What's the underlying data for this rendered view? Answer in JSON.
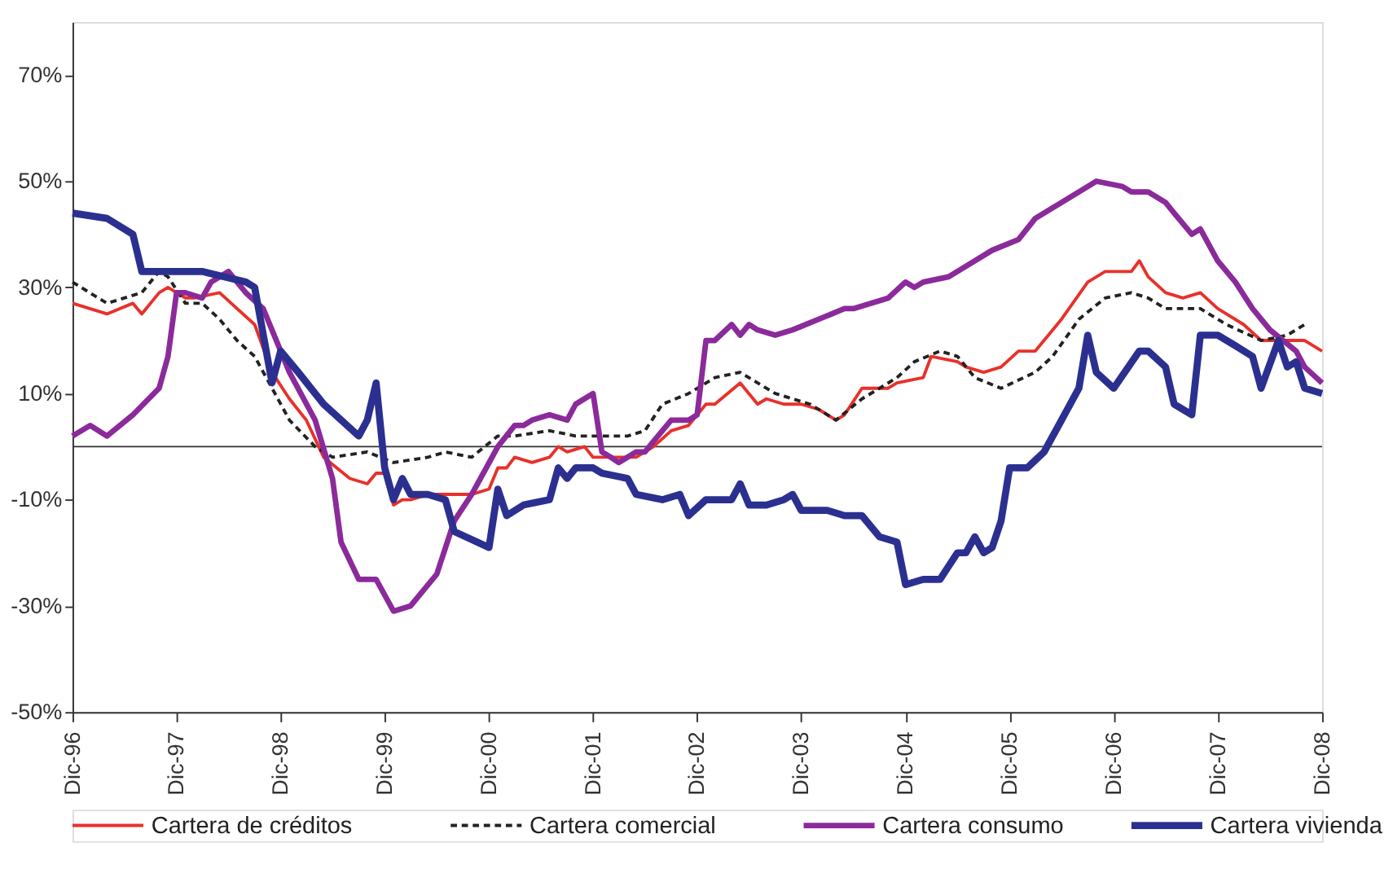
{
  "chart_data": {
    "type": "line",
    "xlim": [
      "1996-12",
      "2008-12"
    ],
    "xticks": [
      {
        "value": "1996-12",
        "label": "Dic-96"
      },
      {
        "value": "1997-12",
        "label": "Dic-97"
      },
      {
        "value": "1998-12",
        "label": "Dic-98"
      },
      {
        "value": "1999-12",
        "label": "Dic-99"
      },
      {
        "value": "2000-12",
        "label": "Dic-00"
      },
      {
        "value": "2001-12",
        "label": "Dic-01"
      },
      {
        "value": "2002-12",
        "label": "Dic-02"
      },
      {
        "value": "2003-12",
        "label": "Dic-03"
      },
      {
        "value": "2004-12",
        "label": "Dic-04"
      },
      {
        "value": "2005-12",
        "label": "Dic-05"
      },
      {
        "value": "2006-12",
        "label": "Dic-06"
      },
      {
        "value": "2007-12",
        "label": "Dic-07"
      },
      {
        "value": "2008-12",
        "label": "Dic-08"
      }
    ],
    "ylim": [
      -50,
      80
    ],
    "yticks": [
      {
        "value": -50,
        "label": "-50%"
      },
      {
        "value": -30,
        "label": "-30%"
      },
      {
        "value": -10,
        "label": "-10%"
      },
      {
        "value": 10,
        "label": "10%"
      },
      {
        "value": 30,
        "label": "30%"
      },
      {
        "value": 50,
        "label": "50%"
      },
      {
        "value": 70,
        "label": "70%"
      }
    ],
    "grid": false,
    "legend": "bottom",
    "marker": "none",
    "ref_lines": [
      {
        "axis": "y",
        "value": 0,
        "color": "#333333"
      }
    ],
    "series": [
      {
        "name": "Cartera de créditos",
        "color": "#e8312a",
        "line_style": "solid",
        "x": [
          "1996-12",
          "1997-04",
          "1997-07",
          "1997-08",
          "1997-10",
          "1997-11",
          "1998-01",
          "1998-02",
          "1998-05",
          "1998-07",
          "1998-09",
          "1998-11",
          "1999-01",
          "1999-03",
          "1999-05",
          "1999-08",
          "1999-10",
          "1999-11",
          "1999-12",
          "2000-01",
          "2000-02",
          "2000-03",
          "2000-05",
          "2000-07",
          "2000-08",
          "2000-10",
          "2000-12",
          "2001-01",
          "2001-02",
          "2001-03",
          "2001-05",
          "2001-07",
          "2001-08",
          "2001-09",
          "2001-11",
          "2001-12",
          "2002-03",
          "2002-05",
          "2002-07",
          "2002-09",
          "2002-11",
          "2003-01",
          "2003-02",
          "2003-05",
          "2003-07",
          "2003-08",
          "2003-10",
          "2003-12",
          "2004-02",
          "2004-04",
          "2004-05",
          "2004-07",
          "2004-08",
          "2004-10",
          "2004-11",
          "2005-02",
          "2005-03",
          "2005-06",
          "2005-07",
          "2005-09",
          "2005-11",
          "2006-01",
          "2006-03",
          "2006-06",
          "2006-09",
          "2006-11",
          "2007-02",
          "2007-03",
          "2007-04",
          "2007-06",
          "2007-08",
          "2007-10",
          "2007-12",
          "2008-03",
          "2008-05",
          "2008-08",
          "2008-10",
          "2008-12"
        ],
        "values": [
          27,
          25,
          27,
          25,
          29,
          30,
          28,
          28,
          29,
          26,
          23,
          14,
          9,
          5,
          -2,
          -6,
          -7,
          -5,
          -5,
          -11,
          -10,
          -10,
          -9,
          -9,
          -9,
          -9,
          -8,
          -4,
          -4,
          -2,
          -3,
          -2,
          0,
          -1,
          0,
          -2,
          -2,
          -2,
          0,
          3,
          4,
          8,
          8,
          12,
          8,
          9,
          8,
          8,
          7,
          5,
          6,
          11,
          11,
          11,
          12,
          13,
          17,
          16,
          15,
          14,
          15,
          18,
          18,
          24,
          31,
          33,
          33,
          35,
          32,
          29,
          28,
          29,
          26,
          23,
          20,
          20,
          20,
          18
        ]
      },
      {
        "name": "Cartera comercial",
        "color": "#222222",
        "line_style": "dashed",
        "x": [
          "1996-12",
          "1997-04",
          "1997-08",
          "1997-10",
          "1997-11",
          "1998-01",
          "1998-03",
          "1998-05",
          "1998-07",
          "1998-09",
          "1998-11",
          "1999-01",
          "1999-04",
          "1999-06",
          "1999-10",
          "2000-01",
          "2000-05",
          "2000-07",
          "2000-10",
          "2001-01",
          "2001-03",
          "2001-07",
          "2001-10",
          "2001-12",
          "2002-04",
          "2002-06",
          "2002-08",
          "2002-11",
          "2003-02",
          "2003-05",
          "2003-07",
          "2003-09",
          "2003-11",
          "2004-01",
          "2004-04",
          "2004-07",
          "2004-09",
          "2004-11",
          "2005-01",
          "2005-04",
          "2005-06",
          "2005-08",
          "2005-11",
          "2006-03",
          "2006-05",
          "2006-08",
          "2006-11",
          "2007-02",
          "2007-04",
          "2007-06",
          "2007-10",
          "2008-01",
          "2008-05",
          "2008-08",
          "2008-10"
        ],
        "values": [
          31,
          27,
          29,
          33,
          32,
          27,
          27,
          24,
          20,
          17,
          11,
          5,
          0,
          -2,
          -1,
          -3,
          -2,
          -1,
          -2,
          2,
          2,
          3,
          2,
          2,
          2,
          3,
          8,
          10,
          13,
          14,
          12,
          10,
          9,
          8,
          5,
          9,
          11,
          13,
          16,
          18,
          17,
          13,
          11,
          14,
          17,
          24,
          28,
          29,
          28,
          26,
          26,
          23,
          20,
          21,
          23
        ]
      },
      {
        "name": "Cartera consumo",
        "color": "#8b2a9a",
        "line_style": "solid",
        "x": [
          "1996-12",
          "1997-02",
          "1997-04",
          "1997-07",
          "1997-10",
          "1997-11",
          "1997-12",
          "1998-01",
          "1998-03",
          "1998-04",
          "1998-06",
          "1998-08",
          "1998-10",
          "1999-01",
          "1999-04",
          "1999-06",
          "1999-07",
          "1999-09",
          "1999-11",
          "2000-01",
          "2000-03",
          "2000-06",
          "2000-08",
          "2000-10",
          "2000-11",
          "2001-01",
          "2001-03",
          "2001-04",
          "2001-05",
          "2001-07",
          "2001-09",
          "2001-10",
          "2001-12",
          "2002-01",
          "2002-02",
          "2002-03",
          "2002-05",
          "2002-06",
          "2002-07",
          "2002-09",
          "2002-11",
          "2002-12",
          "2003-01",
          "2003-02",
          "2003-04",
          "2003-05",
          "2003-06",
          "2003-07",
          "2003-09",
          "2003-11",
          "2004-02",
          "2004-05",
          "2004-06",
          "2004-08",
          "2004-10",
          "2004-12",
          "2005-01",
          "2005-02",
          "2005-05",
          "2005-07",
          "2005-10",
          "2006-01",
          "2006-03",
          "2006-06",
          "2006-08",
          "2006-10",
          "2007-01",
          "2007-02",
          "2007-04",
          "2007-06",
          "2007-07",
          "2007-09",
          "2007-10",
          "2007-12",
          "2008-02",
          "2008-04",
          "2008-06",
          "2008-09",
          "2008-10",
          "2008-12"
        ],
        "values": [
          2,
          4,
          2,
          6,
          11,
          17,
          29,
          29,
          28,
          31,
          33,
          29,
          26,
          14,
          5,
          -6,
          -18,
          -25,
          -25,
          -31,
          -30,
          -24,
          -14,
          -9,
          -6,
          0,
          4,
          4,
          5,
          6,
          5,
          8,
          10,
          -1,
          -2,
          -3,
          -1,
          -1,
          1,
          5,
          5,
          6,
          20,
          20,
          23,
          21,
          23,
          22,
          21,
          22,
          24,
          26,
          26,
          27,
          28,
          31,
          30,
          31,
          32,
          34,
          37,
          39,
          43,
          46,
          48,
          50,
          49,
          48,
          48,
          46,
          44,
          40,
          41,
          35,
          31,
          26,
          22,
          18,
          15,
          12
        ]
      },
      {
        "name": "Cartera vivienda",
        "color": "#2b3090",
        "line_style": "solid",
        "x": [
          "1996-12",
          "1997-04",
          "1997-07",
          "1997-08",
          "1998-03",
          "1998-08",
          "1998-09",
          "1998-11",
          "1998-12",
          "1999-02",
          "1999-05",
          "1999-09",
          "1999-10",
          "1999-11",
          "1999-12",
          "2000-01",
          "2000-02",
          "2000-03",
          "2000-05",
          "2000-07",
          "2000-08",
          "2000-12",
          "2001-01",
          "2001-02",
          "2001-04",
          "2001-07",
          "2001-08",
          "2001-09",
          "2001-10",
          "2001-12",
          "2002-01",
          "2002-04",
          "2002-05",
          "2002-08",
          "2002-10",
          "2002-11",
          "2003-01",
          "2003-04",
          "2003-05",
          "2003-06",
          "2003-08",
          "2003-10",
          "2003-11",
          "2003-12",
          "2004-03",
          "2004-05",
          "2004-07",
          "2004-09",
          "2004-11",
          "2004-12",
          "2005-02",
          "2005-04",
          "2005-06",
          "2005-07",
          "2005-08",
          "2005-09",
          "2005-10",
          "2005-11",
          "2005-12",
          "2006-02",
          "2006-04",
          "2006-06",
          "2006-08",
          "2006-09",
          "2006-10",
          "2006-12",
          "2007-03",
          "2007-04",
          "2007-06",
          "2007-07",
          "2007-09",
          "2007-10",
          "2007-12",
          "2008-02",
          "2008-04",
          "2008-05",
          "2008-07",
          "2008-08",
          "2008-09",
          "2008-10",
          "2008-12"
        ],
        "values": [
          44,
          43,
          40,
          33,
          33,
          31,
          30,
          12,
          18,
          14,
          8,
          2,
          5,
          12,
          -4,
          -10,
          -6,
          -9,
          -9,
          -10,
          -16,
          -19,
          -8,
          -13,
          -11,
          -10,
          -4,
          -6,
          -4,
          -4,
          -5,
          -6,
          -9,
          -10,
          -9,
          -13,
          -10,
          -10,
          -7,
          -11,
          -11,
          -10,
          -9,
          -12,
          -12,
          -13,
          -13,
          -17,
          -18,
          -26,
          -25,
          -25,
          -20,
          -20,
          -17,
          -20,
          -19,
          -14,
          -4,
          -4,
          -1,
          5,
          11,
          21,
          14,
          11,
          18,
          18,
          15,
          8,
          6,
          21,
          21,
          19,
          17,
          11,
          20,
          15,
          16,
          11,
          10
        ]
      }
    ]
  }
}
